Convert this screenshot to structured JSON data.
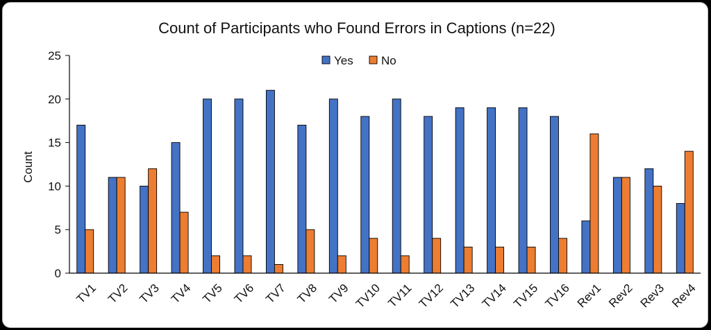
{
  "chart_data": {
    "type": "bar",
    "title": "Count of Participants who Found Errors in Captions (n=22)",
    "xlabel": "",
    "ylabel": "Count",
    "ylim": [
      0,
      25
    ],
    "yticks": [
      0,
      5,
      10,
      15,
      20,
      25
    ],
    "grid": false,
    "legend_position": "top-center",
    "categories": [
      "TV1",
      "TV2",
      "TV3",
      "TV4",
      "TV5",
      "TV6",
      "TV7",
      "TV8",
      "TV9",
      "TV10",
      "TV11",
      "TV12",
      "TV13",
      "TV14",
      "TV15",
      "TV16",
      "Rev1",
      "Rev2",
      "Rev3",
      "Rev4"
    ],
    "series": [
      {
        "name": "Yes",
        "color": "#4472C4",
        "values": [
          17,
          11,
          10,
          15,
          20,
          20,
          21,
          17,
          20,
          18,
          20,
          18,
          19,
          19,
          19,
          18,
          6,
          11,
          12,
          8
        ]
      },
      {
        "name": "No",
        "color": "#ED7D31",
        "values": [
          5,
          11,
          12,
          7,
          2,
          2,
          1,
          5,
          2,
          4,
          2,
          4,
          3,
          3,
          3,
          4,
          16,
          11,
          10,
          14
        ]
      }
    ]
  }
}
